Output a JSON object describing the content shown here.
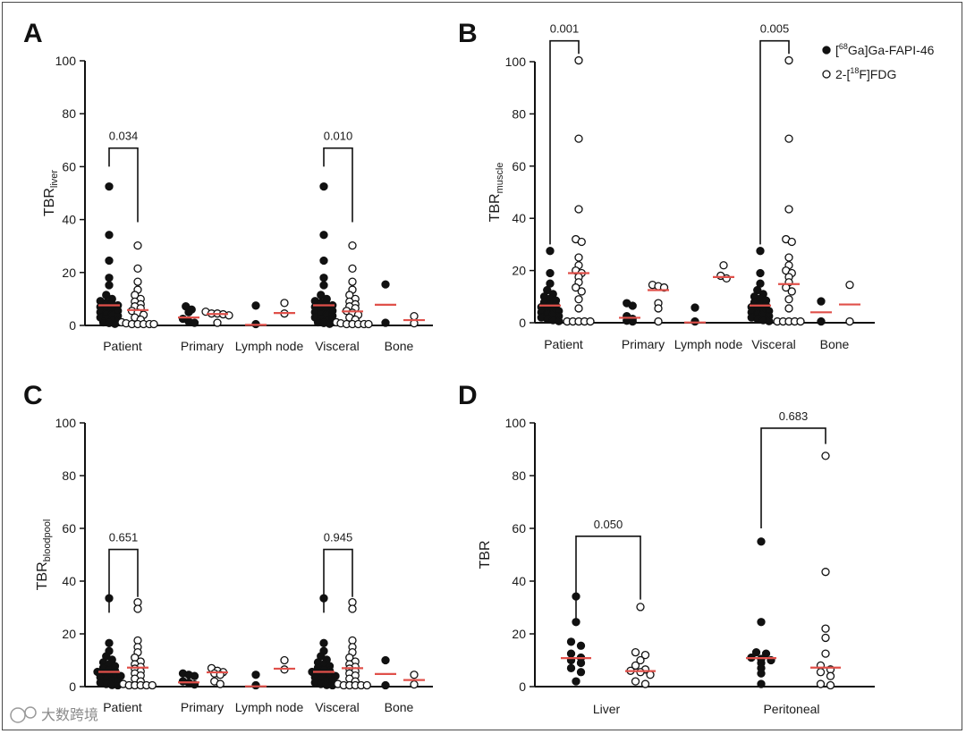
{
  "colors": {
    "median": "#e0504a",
    "ink": "#111111",
    "axis": "#111111"
  },
  "legend": [
    {
      "marker": "filled",
      "pre": "[",
      "sup": "68",
      "post": "Ga]Ga-FAPI-46"
    },
    {
      "marker": "open",
      "pre": "2-[",
      "sup": "18",
      "post": "F]FDG"
    }
  ],
  "watermark": "大数跨境",
  "chart_data": [
    {
      "panel": "A",
      "type": "scatter",
      "ylabel_main": "TBR",
      "ylabel_sub": "liver",
      "ylim": [
        0,
        100
      ],
      "yticks": [
        "0",
        "20",
        "40",
        "60",
        "80",
        "100"
      ],
      "categories": [
        "Patient",
        "Primary",
        "Lymph node",
        "Visceral",
        "Bone"
      ],
      "series": [
        {
          "name": "[68Ga]Ga-FAPI-46",
          "marker": "filled",
          "points": [
            [
              52.5,
              34.2,
              24.5,
              18.0,
              15.2,
              11.5,
              10.0,
              9.2,
              8.6,
              8.0,
              7.6,
              7.0,
              6.5,
              6.0,
              5.5,
              5.0,
              4.5,
              4.0,
              3.6,
              3.0,
              2.5,
              2.0,
              1.6,
              1.2,
              0.9,
              0.6
            ],
            [
              7.2,
              6.0,
              5.0,
              2.5,
              1.5,
              1.0
            ],
            [
              7.5,
              0.5
            ],
            [
              52.5,
              34.2,
              24.5,
              18.0,
              15.2,
              11.5,
              10.0,
              9.2,
              8.6,
              8.0,
              7.6,
              7.0,
              6.5,
              6.0,
              5.5,
              5.0,
              4.5,
              4.0,
              3.6,
              3.0,
              2.5,
              2.0,
              1.6,
              1.2,
              0.9,
              0.6
            ],
            [
              15.5,
              1.0
            ]
          ],
          "medians": [
            7.6,
            3.0,
            0.2,
            7.6,
            7.8
          ]
        },
        {
          "name": "2-[18F]FDG",
          "marker": "open",
          "points": [
            [
              30.2,
              21.5,
              16.5,
              13.5,
              11.5,
              10.0,
              9.0,
              8.0,
              7.2,
              6.5,
              5.5,
              4.8,
              4.0,
              3.0,
              2.2,
              1.2,
              0.8,
              0.5,
              0.5,
              0.5,
              0.5,
              0.5
            ],
            [
              5.2,
              4.5,
              4.5,
              4.2,
              3.8,
              1.0
            ],
            [
              8.5,
              4.5
            ],
            [
              30.2,
              21.5,
              16.5,
              13.5,
              11.5,
              10.0,
              9.0,
              8.0,
              7.2,
              6.5,
              5.5,
              4.8,
              4.0,
              3.0,
              2.2,
              1.2,
              0.8,
              0.5,
              0.5,
              0.5,
              0.5,
              0.5
            ],
            [
              3.5,
              0.8
            ]
          ],
          "medians": [
            5.8,
            4.3,
            4.7,
            5.3,
            2.0
          ]
        }
      ],
      "comparisons": [
        {
          "category": "Patient",
          "p": "0.034",
          "y": 67
        },
        {
          "category": "Visceral",
          "p": "0.010",
          "y": 67
        }
      ]
    },
    {
      "panel": "B",
      "type": "scatter",
      "ylabel_main": "TBR",
      "ylabel_sub": "muscle",
      "ylim": [
        0,
        100
      ],
      "yticks": [
        "0",
        "20",
        "40",
        "60",
        "80",
        "100"
      ],
      "categories": [
        "Patient",
        "Primary",
        "Lymph node",
        "Visceral",
        "Bone"
      ],
      "series": [
        {
          "name": "[68Ga]Ga-FAPI-46",
          "marker": "filled",
          "points": [
            [
              27.5,
              19.0,
              15.0,
              12.5,
              11.0,
              10.0,
              9.2,
              8.5,
              7.8,
              7.2,
              6.6,
              6.0,
              5.5,
              5.0,
              4.5,
              4.0,
              3.5,
              3.0,
              2.5,
              2.0,
              1.5,
              1.0,
              0.6
            ],
            [
              7.5,
              6.5,
              2.5,
              1.5,
              0.8,
              0.5
            ],
            [
              5.8,
              0.5
            ],
            [
              27.5,
              19.0,
              15.0,
              12.5,
              11.0,
              10.0,
              9.2,
              8.5,
              7.8,
              7.2,
              6.6,
              6.0,
              5.5,
              5.0,
              4.5,
              4.0,
              3.5,
              3.0,
              2.5,
              2.0,
              1.5,
              1.0,
              0.6
            ],
            [
              8.2,
              0.5
            ]
          ],
          "medians": [
            6.6,
            1.9,
            0.1,
            6.6,
            4.0
          ]
        },
        {
          "name": "2-[18F]FDG",
          "marker": "open",
          "points": [
            [
              100.5,
              70.5,
              43.5,
              32.0,
              31.0,
              25.0,
              22.0,
              20.0,
              19.0,
              17.5,
              15.5,
              13.5,
              12.0,
              9.0,
              5.5,
              0.5,
              0.5,
              0.5,
              0.5,
              0.5
            ],
            [
              14.5,
              14.0,
              13.5,
              7.5,
              5.5,
              0.5
            ],
            [
              22.0,
              18.0,
              17.0
            ],
            [
              100.5,
              70.5,
              43.5,
              32.0,
              31.0,
              25.0,
              22.0,
              20.0,
              19.0,
              17.5,
              15.5,
              13.5,
              12.0,
              9.0,
              5.5,
              0.5,
              0.5,
              0.5,
              0.5,
              0.5
            ],
            [
              14.5,
              0.5
            ]
          ],
          "medians": [
            19.0,
            12.5,
            17.5,
            14.8,
            7.0
          ]
        }
      ],
      "comparisons": [
        {
          "category": "Patient",
          "p": "0.001",
          "y": 108
        },
        {
          "category": "Visceral",
          "p": "0.005",
          "y": 108
        }
      ]
    },
    {
      "panel": "C",
      "type": "scatter",
      "ylabel_main": "TBR",
      "ylabel_sub": "bloodpool",
      "ylim": [
        0,
        100
      ],
      "yticks": [
        "0",
        "20",
        "40",
        "60",
        "80",
        "100"
      ],
      "categories": [
        "Patient",
        "Primary",
        "Lymph node",
        "Visceral",
        "Bone"
      ],
      "series": [
        {
          "name": "[68Ga]Ga-FAPI-46",
          "marker": "filled",
          "points": [
            [
              33.5,
              16.5,
              13.5,
              11.5,
              10.2,
              9.2,
              8.4,
              7.8,
              7.2,
              6.6,
              6.0,
              5.6,
              5.2,
              4.8,
              4.4,
              4.0,
              3.5,
              3.0,
              2.5,
              2.0,
              1.5,
              1.0,
              0.6,
              0.5
            ],
            [
              5.0,
              4.5,
              4.0,
              2.0,
              1.5,
              0.8
            ],
            [
              4.5,
              0.5
            ],
            [
              33.5,
              16.5,
              13.5,
              11.5,
              10.2,
              9.2,
              8.4,
              7.8,
              7.2,
              6.6,
              6.0,
              5.6,
              5.2,
              4.8,
              4.4,
              4.0,
              3.5,
              3.0,
              2.5,
              2.0,
              1.5,
              1.0,
              0.6,
              0.5
            ],
            [
              10.0,
              0.5
            ]
          ],
          "medians": [
            5.6,
            1.6,
            0.1,
            5.6,
            4.8
          ]
        },
        {
          "name": "2-[18F]FDG",
          "marker": "open",
          "points": [
            [
              32.0,
              29.5,
              17.5,
              15.0,
              13.0,
              11.0,
              9.5,
              8.5,
              7.5,
              6.8,
              5.8,
              5.0,
              4.2,
              3.0,
              2.0,
              1.0,
              0.5,
              0.5,
              0.5,
              0.5,
              0.5
            ],
            [
              7.0,
              6.0,
              5.5,
              5.0,
              4.5,
              2.0,
              1.0
            ],
            [
              10.0,
              6.5
            ],
            [
              32.0,
              29.5,
              17.5,
              15.0,
              13.0,
              11.0,
              9.5,
              8.5,
              7.5,
              6.8,
              5.8,
              5.0,
              4.2,
              3.0,
              2.0,
              1.0,
              0.5,
              0.5,
              0.5,
              0.5,
              0.5
            ],
            [
              4.5,
              0.8
            ]
          ],
          "medians": [
            7.2,
            5.4,
            6.8,
            7.0,
            2.5
          ]
        }
      ],
      "comparisons": [
        {
          "category": "Patient",
          "p": "0.651",
          "y": 52
        },
        {
          "category": "Visceral",
          "p": "0.945",
          "y": 52
        }
      ]
    },
    {
      "panel": "D",
      "type": "scatter",
      "ylabel_main": "TBR",
      "ylabel_sub": "",
      "ylim": [
        0,
        100
      ],
      "yticks": [
        "0",
        "20",
        "40",
        "60",
        "80",
        "100"
      ],
      "categories": [
        "Liver",
        "Peritoneal"
      ],
      "series": [
        {
          "name": "[68Ga]Ga-FAPI-46",
          "marker": "filled",
          "points": [
            [
              34.2,
              24.5,
              17.0,
              15.5,
              12.5,
              11.0,
              10.0,
              9.0,
              7.0,
              5.5,
              2.0
            ],
            [
              55.0,
              24.5,
              13.0,
              12.5,
              11.0,
              10.5,
              10.0,
              9.0,
              7.0,
              5.0,
              1.0
            ]
          ],
          "medians": [
            10.8,
            10.8
          ]
        },
        {
          "name": "2-[18F]FDG",
          "marker": "open",
          "points": [
            [
              30.2,
              13.0,
              12.0,
              10.0,
              8.0,
              6.5,
              6.0,
              5.5,
              4.5,
              2.0,
              1.0
            ],
            [
              87.5,
              43.5,
              22.0,
              18.5,
              12.5,
              8.0,
              6.5,
              5.5,
              4.0,
              1.0,
              0.5
            ]
          ],
          "medians": [
            5.9,
            7.2
          ]
        }
      ],
      "comparisons": [
        {
          "category": "Liver",
          "p": "0.050",
          "y": 57
        },
        {
          "category": "Peritoneal",
          "p": "0.683",
          "y": 98
        }
      ]
    }
  ]
}
